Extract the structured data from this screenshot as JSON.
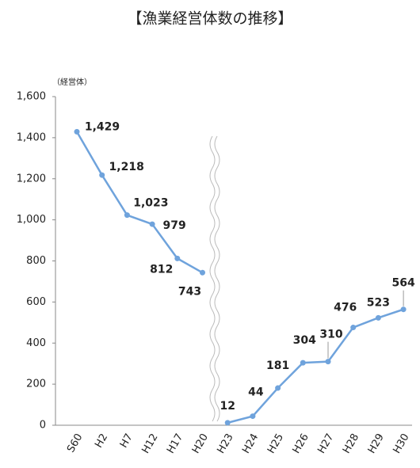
{
  "chart_data": {
    "type": "line",
    "title": "【漁業経営体数の推移】",
    "y_unit": "（経営体）",
    "categories": [
      "S60",
      "H2",
      "H7",
      "H12",
      "H17",
      "H20",
      null,
      "H23",
      "H24",
      "H25",
      "H26",
      "H27",
      "H28",
      "H29",
      "H30"
    ],
    "values": [
      1429,
      1218,
      1023,
      979,
      812,
      743,
      null,
      12,
      44,
      181,
      304,
      310,
      476,
      523,
      564
    ],
    "value_labels": [
      "1,429",
      "1,218",
      "1,023",
      "979",
      "812",
      "743",
      null,
      "12",
      "44",
      "181",
      "304",
      "310",
      "476",
      "523",
      "564"
    ],
    "color": "#6fa3dc",
    "ylim": [
      0,
      1600
    ],
    "yticks": [
      0,
      200,
      400,
      600,
      800,
      {
        "value": 1000,
        "label": "1,000"
      },
      {
        "value": 1200,
        "label": "1,200"
      },
      {
        "value": 1400,
        "label": "1,400"
      },
      {
        "value": 1600,
        "label": "1,600"
      }
    ],
    "grid": false
  }
}
